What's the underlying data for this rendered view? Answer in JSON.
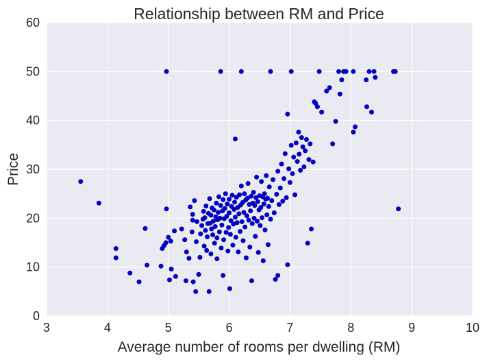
{
  "chart_data": {
    "type": "scatter",
    "title": "Relationship between RM and Price",
    "xlabel": "Average number of rooms per dwelling (RM)",
    "ylabel": "Price",
    "xlim": [
      3,
      10
    ],
    "ylim": [
      0,
      60
    ],
    "xticks": [
      "3",
      "4",
      "5",
      "6",
      "7",
      "8",
      "9",
      "10"
    ],
    "yticks": [
      "0",
      "10",
      "20",
      "30",
      "40",
      "50",
      "60"
    ],
    "grid": true,
    "colors": {
      "background": "#EAEAF2",
      "grid": "#FFFFFF",
      "marker": "#0000D8",
      "marker_edge": "#00007F"
    },
    "points": [
      [
        3.56,
        27.5
      ],
      [
        3.86,
        23.1
      ],
      [
        4.14,
        13.8
      ],
      [
        4.14,
        11.9
      ],
      [
        4.37,
        8.8
      ],
      [
        4.52,
        7.0
      ],
      [
        4.62,
        17.9
      ],
      [
        4.65,
        10.4
      ],
      [
        4.88,
        10.2
      ],
      [
        4.9,
        13.8
      ],
      [
        4.93,
        14.4
      ],
      [
        4.96,
        15.0
      ],
      [
        4.97,
        50.0
      ],
      [
        4.97,
        21.9
      ],
      [
        5.0,
        16.1
      ],
      [
        5.02,
        7.4
      ],
      [
        5.04,
        15.3
      ],
      [
        5.05,
        9.6
      ],
      [
        5.1,
        17.4
      ],
      [
        5.12,
        8.1
      ],
      [
        5.22,
        17.8
      ],
      [
        5.27,
        15.6
      ],
      [
        5.29,
        7.2
      ],
      [
        5.3,
        13.1
      ],
      [
        5.34,
        11.8
      ],
      [
        5.36,
        22.3
      ],
      [
        5.39,
        17.2
      ],
      [
        5.4,
        19.6
      ],
      [
        5.4,
        20.8
      ],
      [
        5.41,
        7.0
      ],
      [
        5.43,
        23.6
      ],
      [
        5.45,
        5.0
      ],
      [
        5.46,
        15.2
      ],
      [
        5.47,
        19.3
      ],
      [
        5.5,
        8.5
      ],
      [
        5.52,
        12.0
      ],
      [
        5.53,
        16.8
      ],
      [
        5.55,
        18.5
      ],
      [
        5.57,
        19.8
      ],
      [
        5.58,
        21.4
      ],
      [
        5.59,
        14.3
      ],
      [
        5.6,
        20.1
      ],
      [
        5.61,
        17.5
      ],
      [
        5.62,
        22.5
      ],
      [
        5.63,
        13.4
      ],
      [
        5.64,
        16.2
      ],
      [
        5.65,
        18.9
      ],
      [
        5.66,
        21.0
      ],
      [
        5.67,
        5.0
      ],
      [
        5.68,
        24.0
      ],
      [
        5.69,
        19.0
      ],
      [
        5.7,
        20.6
      ],
      [
        5.7,
        12.7
      ],
      [
        5.71,
        17.8
      ],
      [
        5.72,
        22.1
      ],
      [
        5.73,
        16.6
      ],
      [
        5.74,
        19.4
      ],
      [
        5.75,
        21.7
      ],
      [
        5.76,
        14.9
      ],
      [
        5.77,
        18.3
      ],
      [
        5.78,
        20.3
      ],
      [
        5.79,
        23.1
      ],
      [
        5.8,
        11.7
      ],
      [
        5.8,
        16.0
      ],
      [
        5.81,
        19.7
      ],
      [
        5.82,
        21.2
      ],
      [
        5.83,
        24.4
      ],
      [
        5.84,
        17.2
      ],
      [
        5.85,
        20.0
      ],
      [
        5.86,
        50.0
      ],
      [
        5.86,
        22.6
      ],
      [
        5.87,
        13.9
      ],
      [
        5.88,
        18.6
      ],
      [
        5.89,
        21.5
      ],
      [
        5.9,
        23.8
      ],
      [
        5.9,
        8.3
      ],
      [
        5.91,
        15.6
      ],
      [
        5.92,
        19.9
      ],
      [
        5.93,
        22.0
      ],
      [
        5.94,
        25.0
      ],
      [
        5.95,
        17.1
      ],
      [
        5.96,
        20.4
      ],
      [
        5.97,
        22.9
      ],
      [
        5.98,
        13.3
      ],
      [
        5.99,
        18.1
      ],
      [
        6.0,
        21.1
      ],
      [
        6.0,
        23.9
      ],
      [
        6.01,
        5.6
      ],
      [
        6.02,
        16.7
      ],
      [
        6.03,
        19.5
      ],
      [
        6.04,
        22.4
      ],
      [
        6.05,
        24.7
      ],
      [
        6.06,
        14.5
      ],
      [
        6.07,
        18.8
      ],
      [
        6.08,
        21.8
      ],
      [
        6.09,
        23.3
      ],
      [
        6.1,
        20.2
      ],
      [
        6.1,
        36.2
      ],
      [
        6.11,
        16.1
      ],
      [
        6.12,
        24.3
      ],
      [
        6.13,
        19.1
      ],
      [
        6.14,
        22.2
      ],
      [
        6.15,
        13.1
      ],
      [
        6.16,
        20.9
      ],
      [
        6.17,
        24.8
      ],
      [
        6.18,
        17.3
      ],
      [
        6.19,
        22.7
      ],
      [
        6.2,
        50.0
      ],
      [
        6.2,
        26.6
      ],
      [
        6.21,
        19.3
      ],
      [
        6.22,
        23.2
      ],
      [
        6.23,
        15.4
      ],
      [
        6.24,
        21.2
      ],
      [
        6.25,
        25.0
      ],
      [
        6.26,
        18.2
      ],
      [
        6.27,
        23.7
      ],
      [
        6.28,
        11.9
      ],
      [
        6.29,
        20.5
      ],
      [
        6.3,
        24.1
      ],
      [
        6.31,
        27.1
      ],
      [
        6.32,
        19.6
      ],
      [
        6.33,
        22.8
      ],
      [
        6.34,
        14.1
      ],
      [
        6.35,
        21.5
      ],
      [
        6.36,
        24.5
      ],
      [
        6.37,
        7.2
      ],
      [
        6.38,
        18.9
      ],
      [
        6.39,
        23.1
      ],
      [
        6.4,
        25.3
      ],
      [
        6.41,
        20.0
      ],
      [
        6.42,
        22.6
      ],
      [
        6.43,
        16.3
      ],
      [
        6.44,
        24.2
      ],
      [
        6.45,
        28.4
      ],
      [
        6.46,
        19.4
      ],
      [
        6.47,
        23.4
      ],
      [
        6.48,
        13.0
      ],
      [
        6.49,
        21.7
      ],
      [
        6.5,
        24.6
      ],
      [
        6.51,
        18.5
      ],
      [
        6.52,
        22.2
      ],
      [
        6.53,
        27.5
      ],
      [
        6.54,
        20.1
      ],
      [
        6.55,
        24.4
      ],
      [
        6.56,
        11.3
      ],
      [
        6.57,
        22.9
      ],
      [
        6.58,
        25.0
      ],
      [
        6.59,
        17.6
      ],
      [
        6.6,
        23.9
      ],
      [
        6.61,
        28.7
      ],
      [
        6.62,
        20.7
      ],
      [
        6.63,
        24.1
      ],
      [
        6.64,
        14.6
      ],
      [
        6.65,
        22.4
      ],
      [
        6.66,
        26.4
      ],
      [
        6.68,
        50.0
      ],
      [
        6.68,
        19.8
      ],
      [
        6.7,
        23.6
      ],
      [
        6.72,
        27.9
      ],
      [
        6.74,
        21.1
      ],
      [
        6.76,
        7.5
      ],
      [
        6.78,
        24.9
      ],
      [
        6.8,
        29.6
      ],
      [
        6.8,
        8.3
      ],
      [
        6.82,
        22.8
      ],
      [
        6.84,
        26.2
      ],
      [
        6.86,
        31.1
      ],
      [
        6.88,
        23.5
      ],
      [
        6.9,
        28.1
      ],
      [
        6.92,
        33.2
      ],
      [
        6.94,
        24.2
      ],
      [
        6.96,
        41.3
      ],
      [
        6.96,
        10.5
      ],
      [
        6.98,
        30.1
      ],
      [
        7.0,
        27.3
      ],
      [
        7.02,
        50.0
      ],
      [
        7.02,
        34.9
      ],
      [
        7.04,
        29.1
      ],
      [
        7.06,
        32.5
      ],
      [
        7.08,
        24.8
      ],
      [
        7.1,
        35.4
      ],
      [
        7.12,
        31.6
      ],
      [
        7.14,
        37.6
      ],
      [
        7.15,
        33.1
      ],
      [
        7.17,
        29.8
      ],
      [
        7.19,
        36.5
      ],
      [
        7.21,
        34.6
      ],
      [
        7.23,
        30.5
      ],
      [
        7.25,
        33.8
      ],
      [
        7.27,
        36.1
      ],
      [
        7.29,
        14.9
      ],
      [
        7.31,
        32.0
      ],
      [
        7.33,
        35.2
      ],
      [
        7.35,
        17.8
      ],
      [
        7.38,
        31.5
      ],
      [
        7.4,
        43.8
      ],
      [
        7.42,
        43.5
      ],
      [
        7.45,
        42.8
      ],
      [
        7.48,
        50.0
      ],
      [
        7.52,
        41.7
      ],
      [
        7.6,
        46.0
      ],
      [
        7.65,
        46.7
      ],
      [
        7.7,
        35.2
      ],
      [
        7.75,
        39.8
      ],
      [
        7.8,
        50.0
      ],
      [
        7.82,
        45.4
      ],
      [
        7.85,
        48.3
      ],
      [
        7.88,
        50.0
      ],
      [
        7.92,
        50.0
      ],
      [
        8.04,
        50.0
      ],
      [
        8.04,
        37.6
      ],
      [
        8.07,
        38.7
      ],
      [
        8.25,
        48.3
      ],
      [
        8.26,
        42.8
      ],
      [
        8.3,
        50.0
      ],
      [
        8.34,
        41.7
      ],
      [
        8.38,
        50.0
      ],
      [
        8.4,
        48.8
      ],
      [
        8.7,
        50.0
      ],
      [
        8.73,
        50.0
      ],
      [
        8.78,
        21.9
      ]
    ]
  }
}
